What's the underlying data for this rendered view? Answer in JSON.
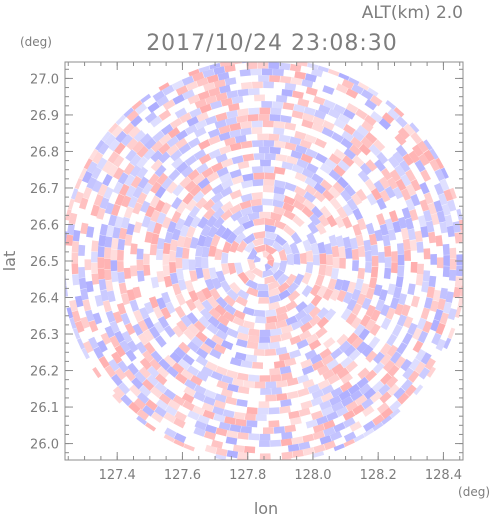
{
  "chart_data": {
    "type": "heatmap",
    "subtitle": "ALT(km) 2.0",
    "title": "2017/10/24 23:08:30",
    "xlabel": "lon",
    "ylabel": "lat",
    "x_unit": "(deg)",
    "y_unit": "(deg)",
    "xlim": [
      127.24,
      128.46
    ],
    "ylim": [
      25.955,
      27.045
    ],
    "x_ticks": [
      127.4,
      127.6,
      127.8,
      128.0,
      128.2,
      128.4
    ],
    "x_tick_labels": [
      "127.4",
      "127.6",
      "127.8",
      "128.0",
      "128.2",
      "128.4"
    ],
    "y_ticks": [
      26.0,
      26.1,
      26.2,
      26.3,
      26.4,
      26.5,
      26.6,
      26.7,
      26.8,
      26.9,
      27.0
    ],
    "y_tick_labels": [
      "26.0",
      "26.1",
      "26.2",
      "26.3",
      "26.4",
      "26.5",
      "26.6",
      "26.7",
      "26.8",
      "26.9",
      "27.0"
    ],
    "radar_center": {
      "lon": 127.85,
      "lat": 26.5
    },
    "grid": false,
    "colors": {
      "positive": "#ff9a9a",
      "negative": "#9a9aff",
      "neutral": "#ffffff",
      "axis": "#8c8c8c"
    }
  }
}
